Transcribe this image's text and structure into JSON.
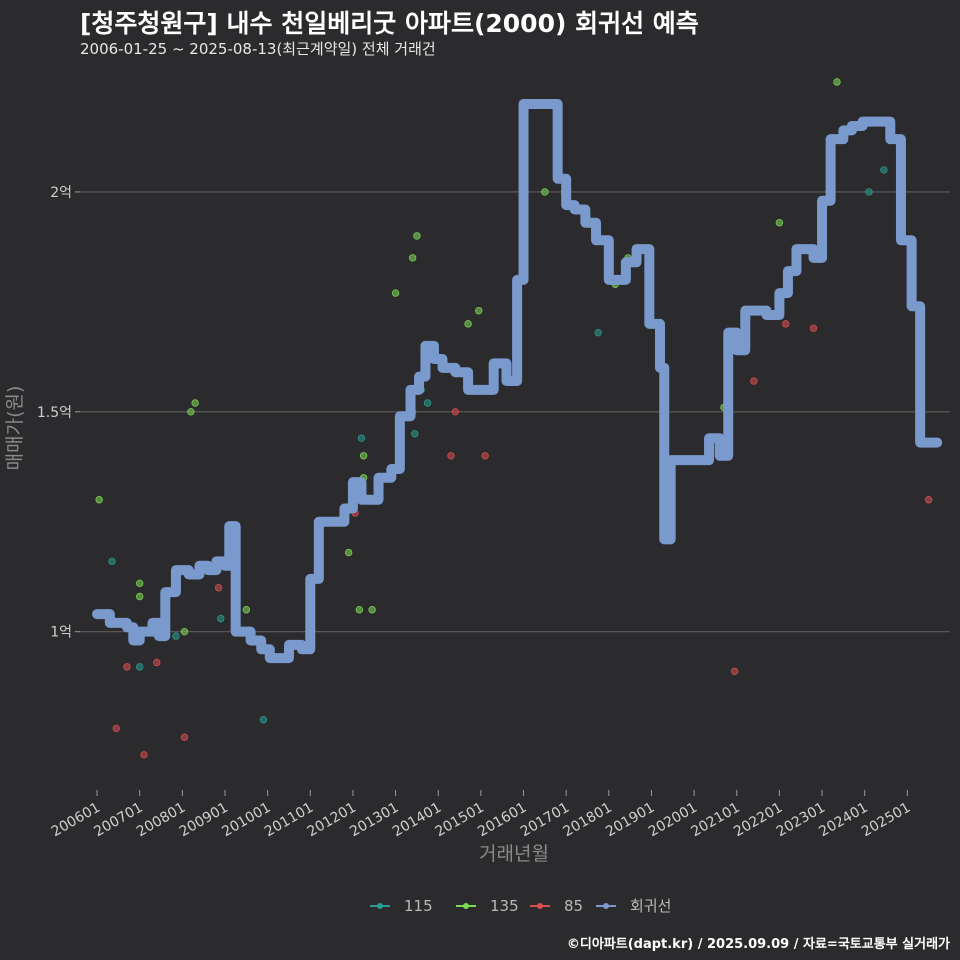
{
  "title": "[청주청원구] 내수 천일베리굿 아파트(2000) 회귀선 예측",
  "subtitle": "2006-01-25 ~ 2025-08-13(최근계약일) 전체 거래건",
  "footer": "©디아파트(dapt.kr) / 2025.09.09 / 자료=국토교통부 실거래가",
  "chart_data": {
    "type": "scatter",
    "xlabel": "거래년월",
    "ylabel": "매매가(원)",
    "x_ticks": [
      "200601",
      "200701",
      "200801",
      "200901",
      "201001",
      "201101",
      "201201",
      "201301",
      "201401",
      "201501",
      "201601",
      "201701",
      "201801",
      "201901",
      "202001",
      "202101",
      "202201",
      "202301",
      "202401",
      "202501"
    ],
    "y_ticks": [
      {
        "value": 1.0,
        "label": "1억"
      },
      {
        "value": 1.5,
        "label": "1.5억"
      },
      {
        "value": 2.0,
        "label": "2억"
      }
    ],
    "ylim": [
      0.64,
      2.3
    ],
    "xlim": [
      2005.6,
      2026.0
    ],
    "ylabel_unit": "억",
    "legend": "bottom",
    "grid": true,
    "series": [
      {
        "name": "115",
        "color": "#2a9d8f",
        "points": [
          [
            2006.35,
            1.16
          ],
          [
            2007.0,
            0.92
          ],
          [
            2007.85,
            0.99
          ],
          [
            2008.9,
            1.03
          ],
          [
            2009.9,
            0.8
          ],
          [
            2012.2,
            1.44
          ],
          [
            2013.45,
            1.45
          ],
          [
            2013.6,
            1.55
          ],
          [
            2013.75,
            1.52
          ],
          [
            2017.75,
            1.68
          ],
          [
            2019.0,
            1.7
          ],
          [
            2024.1,
            2.0
          ],
          [
            2024.45,
            2.05
          ]
        ]
      },
      {
        "name": "135",
        "color": "#7ed957",
        "points": [
          [
            2006.05,
            1.3
          ],
          [
            2007.0,
            1.08
          ],
          [
            2007.0,
            1.11
          ],
          [
            2008.05,
            1.0
          ],
          [
            2008.2,
            1.5
          ],
          [
            2008.3,
            1.52
          ],
          [
            2009.5,
            1.05
          ],
          [
            2011.0,
            1.1
          ],
          [
            2011.9,
            1.18
          ],
          [
            2012.15,
            1.05
          ],
          [
            2012.25,
            1.35
          ],
          [
            2012.25,
            1.4
          ],
          [
            2012.45,
            1.05
          ],
          [
            2013.0,
            1.77
          ],
          [
            2013.4,
            1.85
          ],
          [
            2013.5,
            1.9
          ],
          [
            2014.7,
            1.7
          ],
          [
            2014.95,
            1.73
          ],
          [
            2016.5,
            2.0
          ],
          [
            2018.15,
            1.79
          ],
          [
            2018.45,
            1.85
          ],
          [
            2020.7,
            1.51
          ],
          [
            2022.0,
            1.93
          ],
          [
            2023.35,
            2.25
          ]
        ]
      },
      {
        "name": "85",
        "color": "#d94f4f",
        "points": [
          [
            2006.45,
            0.78
          ],
          [
            2006.7,
            0.92
          ],
          [
            2007.1,
            0.72
          ],
          [
            2007.4,
            0.93
          ],
          [
            2008.05,
            0.76
          ],
          [
            2008.85,
            1.1
          ],
          [
            2012.05,
            1.27
          ],
          [
            2013.4,
            1.5
          ],
          [
            2014.3,
            1.4
          ],
          [
            2014.4,
            1.5
          ],
          [
            2015.1,
            1.4
          ],
          [
            2020.95,
            0.91
          ],
          [
            2021.4,
            1.57
          ],
          [
            2022.15,
            1.7
          ],
          [
            2022.8,
            1.69
          ],
          [
            2025.5,
            1.3
          ]
        ]
      },
      {
        "name": "회귀선",
        "color": "#7a9acd",
        "line": [
          [
            2006.0,
            1.04
          ],
          [
            2006.3,
            1.02
          ],
          [
            2006.7,
            1.01
          ],
          [
            2006.85,
            0.98
          ],
          [
            2007.0,
            1.0
          ],
          [
            2007.3,
            1.02
          ],
          [
            2007.45,
            0.99
          ],
          [
            2007.6,
            1.09
          ],
          [
            2007.85,
            1.14
          ],
          [
            2008.15,
            1.13
          ],
          [
            2008.4,
            1.15
          ],
          [
            2008.6,
            1.14
          ],
          [
            2008.8,
            1.16
          ],
          [
            2009.0,
            1.15
          ],
          [
            2009.1,
            1.24
          ],
          [
            2009.25,
            1.0
          ],
          [
            2009.6,
            0.98
          ],
          [
            2009.85,
            0.96
          ],
          [
            2010.05,
            0.94
          ],
          [
            2010.3,
            0.94
          ],
          [
            2010.5,
            0.97
          ],
          [
            2010.8,
            0.96
          ],
          [
            2011.0,
            1.12
          ],
          [
            2011.2,
            1.25
          ],
          [
            2011.6,
            1.25
          ],
          [
            2011.8,
            1.28
          ],
          [
            2012.0,
            1.34
          ],
          [
            2012.2,
            1.3
          ],
          [
            2012.6,
            1.35
          ],
          [
            2012.9,
            1.37
          ],
          [
            2013.1,
            1.49
          ],
          [
            2013.35,
            1.55
          ],
          [
            2013.55,
            1.58
          ],
          [
            2013.7,
            1.65
          ],
          [
            2013.9,
            1.62
          ],
          [
            2014.1,
            1.6
          ],
          [
            2014.4,
            1.59
          ],
          [
            2014.7,
            1.55
          ],
          [
            2015.0,
            1.55
          ],
          [
            2015.3,
            1.61
          ],
          [
            2015.6,
            1.57
          ],
          [
            2015.85,
            1.8
          ],
          [
            2016.0,
            2.2
          ],
          [
            2016.6,
            2.2
          ],
          [
            2016.8,
            2.03
          ],
          [
            2017.0,
            1.97
          ],
          [
            2017.2,
            1.96
          ],
          [
            2017.45,
            1.93
          ],
          [
            2017.7,
            1.89
          ],
          [
            2018.0,
            1.8
          ],
          [
            2018.4,
            1.84
          ],
          [
            2018.65,
            1.87
          ],
          [
            2018.95,
            1.7
          ],
          [
            2019.2,
            1.6
          ],
          [
            2019.3,
            1.21
          ],
          [
            2019.45,
            1.39
          ],
          [
            2020.1,
            1.39
          ],
          [
            2020.35,
            1.44
          ],
          [
            2020.6,
            1.4
          ],
          [
            2020.8,
            1.68
          ],
          [
            2021.0,
            1.64
          ],
          [
            2021.2,
            1.73
          ],
          [
            2021.5,
            1.73
          ],
          [
            2021.7,
            1.72
          ],
          [
            2022.0,
            1.77
          ],
          [
            2022.2,
            1.82
          ],
          [
            2022.4,
            1.87
          ],
          [
            2022.8,
            1.85
          ],
          [
            2023.0,
            1.98
          ],
          [
            2023.2,
            2.12
          ],
          [
            2023.5,
            2.14
          ],
          [
            2023.7,
            2.15
          ],
          [
            2023.95,
            2.16
          ],
          [
            2024.4,
            2.16
          ],
          [
            2024.6,
            2.12
          ],
          [
            2024.85,
            1.89
          ],
          [
            2025.1,
            1.74
          ],
          [
            2025.3,
            1.43
          ],
          [
            2025.7,
            1.43
          ]
        ]
      }
    ]
  }
}
